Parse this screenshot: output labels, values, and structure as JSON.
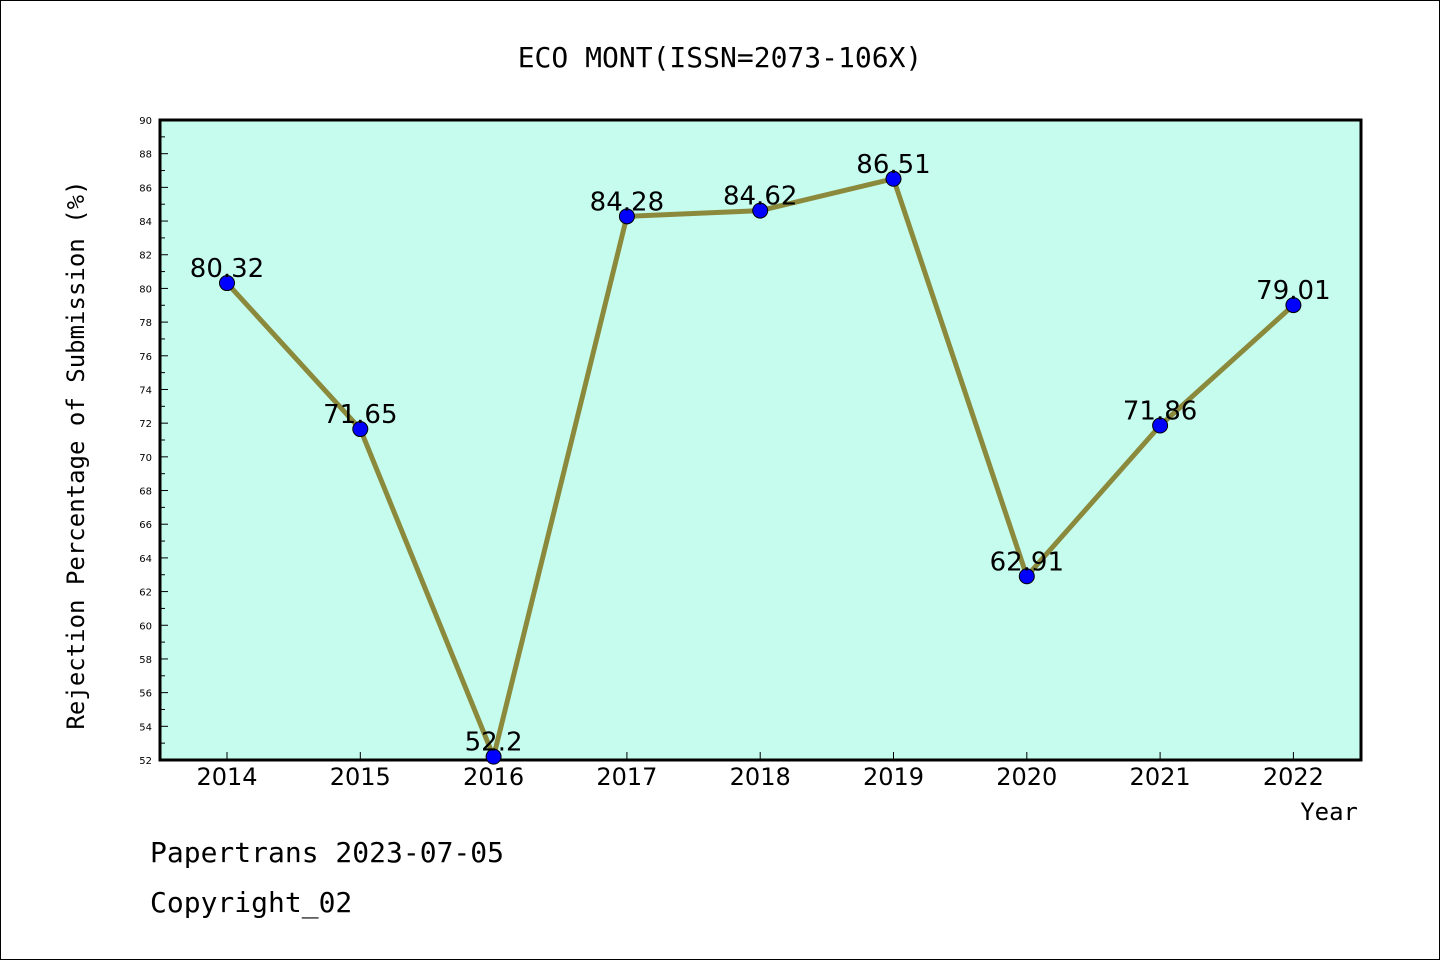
{
  "chart_data": {
    "type": "line",
    "title": "ECO MONT(ISSN=2073-106X)",
    "xlabel": "Year",
    "ylabel": "Rejection Percentage of Submission (%)",
    "categories": [
      "2014",
      "2015",
      "2016",
      "2017",
      "2018",
      "2019",
      "2020",
      "2021",
      "2022"
    ],
    "series": [
      {
        "values": [
          80.32,
          71.65,
          52.2,
          84.28,
          84.62,
          86.51,
          62.91,
          71.86,
          79.01
        ],
        "labels": [
          "80.32",
          "71.65",
          "52.2",
          "84.28",
          "84.62",
          "86.51",
          "62.91",
          "71.86",
          "79.01"
        ]
      }
    ],
    "ylim": [
      52,
      90
    ],
    "yticks": [
      52,
      54,
      56,
      58,
      60,
      62,
      64,
      66,
      68,
      70,
      72,
      74,
      76,
      78,
      80,
      82,
      84,
      86,
      88,
      90
    ],
    "grid": false,
    "legend": "none",
    "colors": {
      "plot_background": "#c6fcee",
      "line": "#8b8a3c",
      "marker": "#0000ff",
      "axis": "#000000"
    }
  },
  "footer": {
    "line1": "Papertrans 2023-07-05",
    "line2": "Copyright_02"
  }
}
